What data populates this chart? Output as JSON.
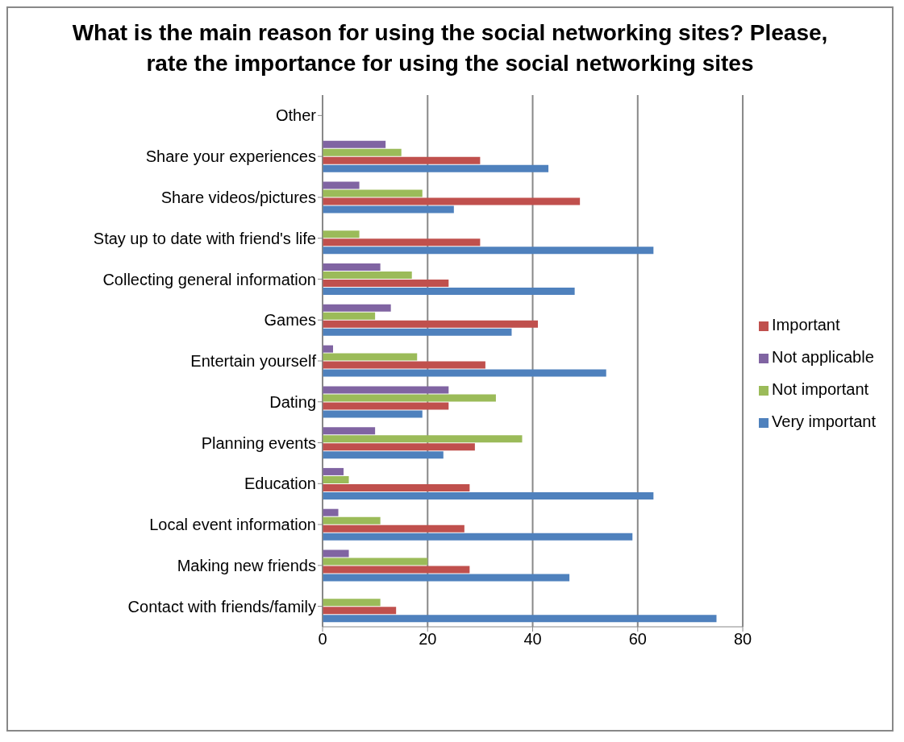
{
  "chart_data": {
    "type": "bar",
    "orientation": "horizontal",
    "title": "What is the main reason for using the social networking sites? Please, rate the importance for using the social networking sites",
    "categories": [
      "Other",
      "Share your experiences",
      "Share videos/pictures",
      "Stay up to date with friend's life",
      "Collecting general information",
      "Games",
      "Entertain yourself",
      "Dating",
      "Planning events",
      "Education",
      "Local event information",
      "Making new friends",
      "Contact with friends/family"
    ],
    "series": [
      {
        "name": "Not applicable",
        "color": "#8064a2",
        "values": [
          0,
          12,
          7,
          0,
          11,
          13,
          2,
          24,
          10,
          4,
          3,
          5,
          0
        ]
      },
      {
        "name": "Not important",
        "color": "#9bbb59",
        "values": [
          0,
          15,
          19,
          7,
          17,
          10,
          18,
          33,
          38,
          5,
          11,
          20,
          11
        ]
      },
      {
        "name": "Important",
        "color": "#c0504d",
        "values": [
          0,
          30,
          49,
          30,
          24,
          41,
          31,
          24,
          29,
          28,
          27,
          28,
          14
        ]
      },
      {
        "name": "Very important",
        "color": "#4f81bd",
        "values": [
          0,
          43,
          25,
          63,
          48,
          36,
          54,
          19,
          23,
          63,
          59,
          47,
          75
        ]
      }
    ],
    "xlim": [
      0,
      80
    ],
    "xticks": [
      0,
      20,
      40,
      60,
      80
    ],
    "grid": "x",
    "legend": "right"
  }
}
